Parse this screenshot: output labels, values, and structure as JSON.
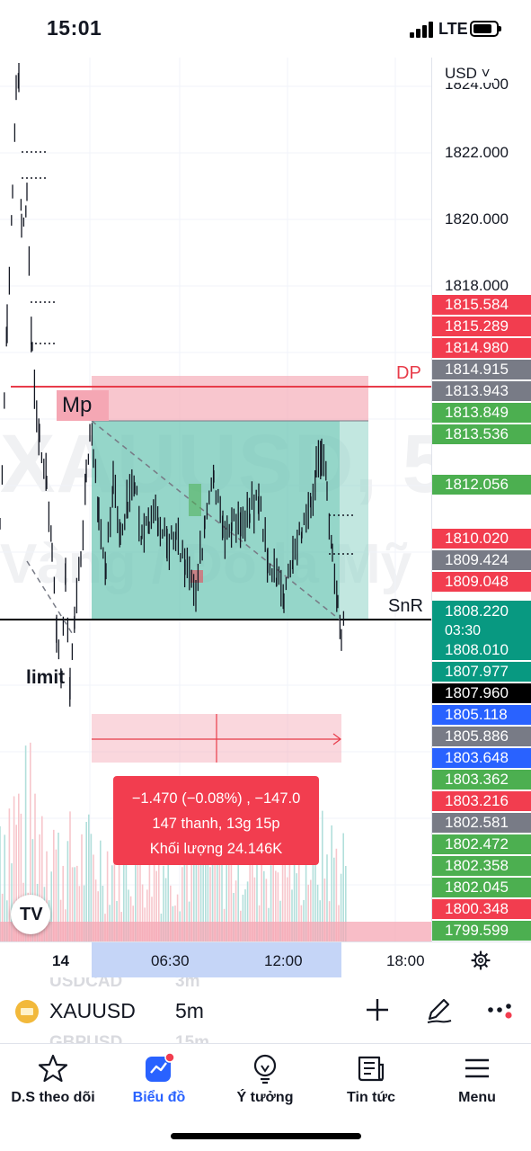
{
  "status_bar": {
    "time": "15:01",
    "network": "LTE"
  },
  "chart": {
    "watermark_symbol": "XAUUSD, 5",
    "watermark_description": "Vàng / Đô la Mỹ",
    "labels": {
      "mp": "Mp",
      "dp": "DP",
      "snr": "SnR",
      "limit": "limit"
    },
    "info": {
      "change": "−1.470 (−0.08%) , −147.0",
      "bars": "147 thanh, 13g 15p",
      "volume": "Khối lượng 24.146K"
    },
    "colors": {
      "dp_line": "#e83c4a",
      "zone_red": "#f5a7b4",
      "zone_green": "#8fd3c6",
      "info_box": "#f23d4f"
    }
  },
  "price_scale": {
    "currency": "USD",
    "ticks": [
      "1824.000",
      "1822.000",
      "1820.000",
      "1818.000"
    ],
    "tags": [
      {
        "price": "1815.584",
        "color": "#f23d4f"
      },
      {
        "price": "1815.289",
        "color": "#f23d4f"
      },
      {
        "price": "1814.980",
        "color": "#f23d4f"
      },
      {
        "price": "1814.915",
        "color": "#787b86"
      },
      {
        "price": "1813.943",
        "color": "#787b86"
      },
      {
        "price": "1813.849",
        "color": "#4caf50"
      },
      {
        "price": "1813.536",
        "color": "#4caf50"
      },
      {
        "price": "1812.056",
        "color": "#4caf50"
      },
      {
        "price": "1810.020",
        "color": "#f23d4f"
      },
      {
        "price": "1809.424",
        "color": "#787b86"
      },
      {
        "price": "1809.048",
        "color": "#f23d4f"
      },
      {
        "price": "1808.220",
        "sub": "03:30",
        "color": "#089981"
      },
      {
        "price": "1808.010",
        "color": "#089981"
      },
      {
        "price": "1807.977",
        "color": "#089981"
      },
      {
        "price": "1807.960",
        "color": "#000000"
      },
      {
        "price": "1805.118",
        "color": "#2962ff"
      },
      {
        "price": "1805.886",
        "color": "#787b86"
      },
      {
        "price": "1803.648",
        "color": "#2962ff"
      },
      {
        "price": "1803.362",
        "color": "#4caf50"
      },
      {
        "price": "1803.216",
        "color": "#f23d4f"
      },
      {
        "price": "1802.581",
        "color": "#787b86"
      },
      {
        "price": "1802.472",
        "color": "#4caf50"
      },
      {
        "price": "1802.358",
        "color": "#4caf50"
      },
      {
        "price": "1802.045",
        "color": "#4caf50"
      },
      {
        "price": "1800.348",
        "color": "#f23d4f"
      },
      {
        "price": "1799.599",
        "color": "#4caf50"
      }
    ]
  },
  "time_axis": {
    "labels": [
      "14",
      "06:30",
      "12:00",
      "18:00"
    ]
  },
  "symbol_bar": {
    "symbol": "XAUUSD",
    "interval": "5m",
    "ghost_rows": [
      {
        "symbol": "USDCAD",
        "interval": "3m"
      },
      {
        "symbol": "GBPUSD",
        "interval": "15m"
      }
    ]
  },
  "nav": {
    "items": [
      {
        "label": "D.S theo dõi",
        "icon": "star-icon"
      },
      {
        "label": "Biểu đồ",
        "icon": "chart-icon"
      },
      {
        "label": "Ý tưởng",
        "icon": "lightbulb-icon"
      },
      {
        "label": "Tin tức",
        "icon": "news-icon"
      },
      {
        "label": "Menu",
        "icon": "hamburger-icon"
      }
    ],
    "active_index": 1
  }
}
